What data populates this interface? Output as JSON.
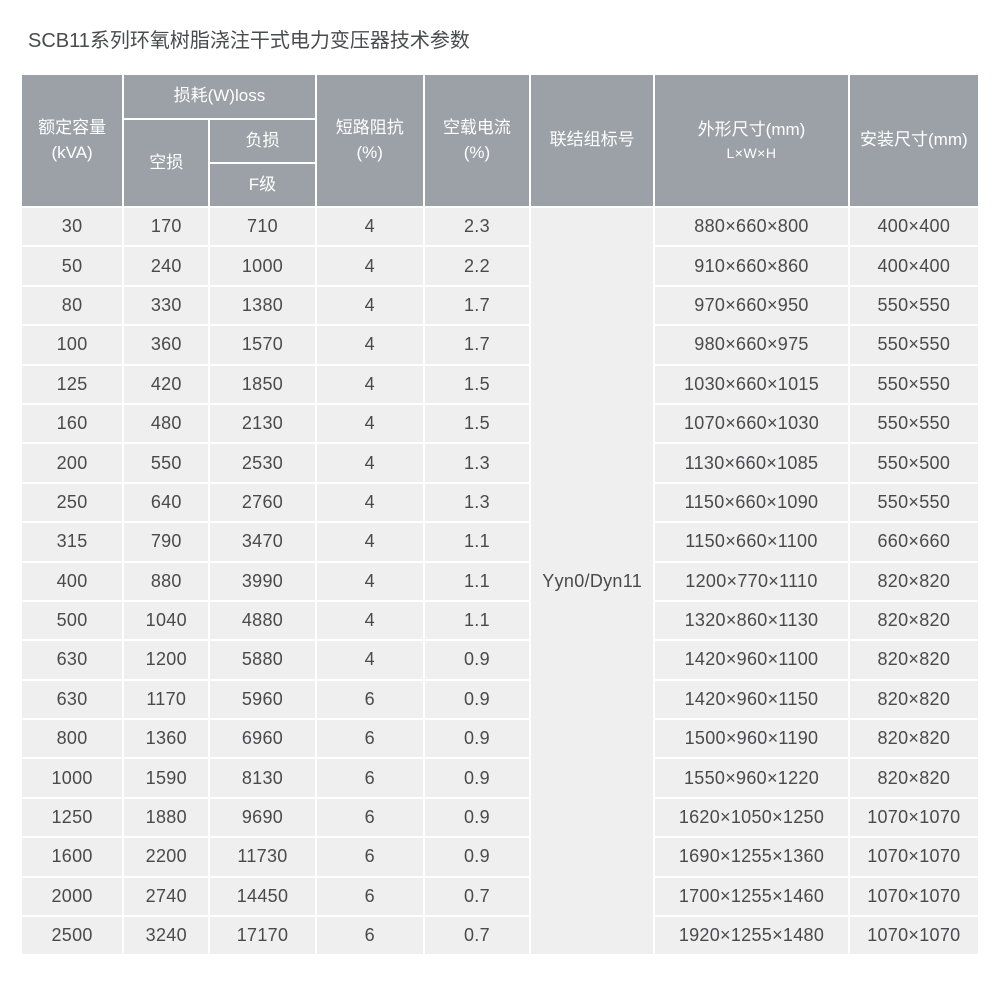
{
  "page": {
    "title": "SCB11系列环氧树脂浇注干式电力变压器技术参数"
  },
  "colors": {
    "header_bg": "#9ba1a7",
    "header_text": "#ffffff",
    "cell_bg": "#efefef",
    "cell_text": "#4a4a4c",
    "border": "#ffffff",
    "title_text": "#4a4b4d"
  },
  "table": {
    "headers": {
      "capacity_line1": "额定容量",
      "capacity_line2": "(kVA)",
      "loss_group": "损耗(W)loss",
      "no_load_loss": "空损",
      "load_loss": "负损",
      "f_class": "F级",
      "impedance_line1": "短路阻抗",
      "impedance_line2": "(%)",
      "no_load_current_line1": "空载电流",
      "no_load_current_line2": "(%)",
      "vector_group": "联结组标号",
      "dimensions_line1": "外形尺寸(mm)",
      "dimensions_line2": "L×W×H",
      "install_dimensions": "安装尺寸(mm)"
    },
    "vector_group_value": "Yyn0/Dyn11",
    "rows": [
      [
        "30",
        "170",
        "710",
        "4",
        "2.3",
        "880×660×800",
        "400×400"
      ],
      [
        "50",
        "240",
        "1000",
        "4",
        "2.2",
        "910×660×860",
        "400×400"
      ],
      [
        "80",
        "330",
        "1380",
        "4",
        "1.7",
        "970×660×950",
        "550×550"
      ],
      [
        "100",
        "360",
        "1570",
        "4",
        "1.7",
        "980×660×975",
        "550×550"
      ],
      [
        "125",
        "420",
        "1850",
        "4",
        "1.5",
        "1030×660×1015",
        "550×550"
      ],
      [
        "160",
        "480",
        "2130",
        "4",
        "1.5",
        "1070×660×1030",
        "550×550"
      ],
      [
        "200",
        "550",
        "2530",
        "4",
        "1.3",
        "1130×660×1085",
        "550×500"
      ],
      [
        "250",
        "640",
        "2760",
        "4",
        "1.3",
        "1150×660×1090",
        "550×550"
      ],
      [
        "315",
        "790",
        "3470",
        "4",
        "1.1",
        "1150×660×1100",
        "660×660"
      ],
      [
        "400",
        "880",
        "3990",
        "4",
        "1.1",
        "1200×770×1110",
        "820×820"
      ],
      [
        "500",
        "1040",
        "4880",
        "4",
        "1.1",
        "1320×860×1130",
        "820×820"
      ],
      [
        "630",
        "1200",
        "5880",
        "4",
        "0.9",
        "1420×960×1100",
        "820×820"
      ],
      [
        "630",
        "1170",
        "5960",
        "6",
        "0.9",
        "1420×960×1150",
        "820×820"
      ],
      [
        "800",
        "1360",
        "6960",
        "6",
        "0.9",
        "1500×960×1190",
        "820×820"
      ],
      [
        "1000",
        "1590",
        "8130",
        "6",
        "0.9",
        "1550×960×1220",
        "820×820"
      ],
      [
        "1250",
        "1880",
        "9690",
        "6",
        "0.9",
        "1620×1050×1250",
        "1070×1070"
      ],
      [
        "1600",
        "2200",
        "11730",
        "6",
        "0.9",
        "1690×1255×1360",
        "1070×1070"
      ],
      [
        "2000",
        "2740",
        "14450",
        "6",
        "0.7",
        "1700×1255×1460",
        "1070×1070"
      ],
      [
        "2500",
        "3240",
        "17170",
        "6",
        "0.7",
        "1920×1255×1480",
        "1070×1070"
      ]
    ]
  }
}
